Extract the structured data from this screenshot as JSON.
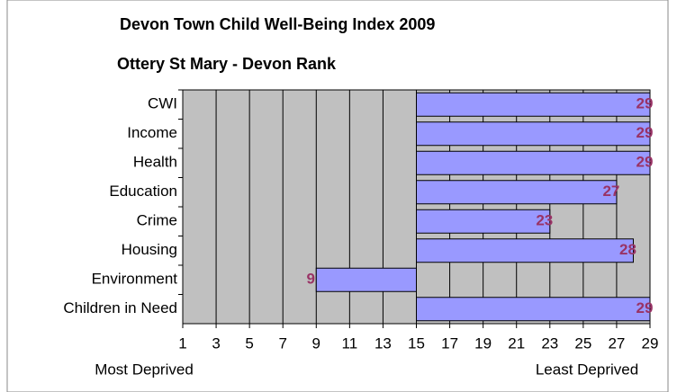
{
  "chart_data": {
    "type": "hbar",
    "title": "Devon Town Child Well-Being Index 2009",
    "subtitle": "Ottery St Mary - Devon Rank",
    "categories": [
      "CWI",
      "Income",
      "Health",
      "Education",
      "Crime",
      "Housing",
      "Environment",
      "Children in Need"
    ],
    "values": [
      29,
      29,
      29,
      27,
      23,
      28,
      9,
      29
    ],
    "bar_base": 15,
    "color": "#9999ff",
    "label_color": "#993366",
    "plot_background": "#c0c0c0",
    "xlim": [
      1,
      29
    ],
    "xticks": [
      1,
      3,
      5,
      7,
      9,
      11,
      13,
      15,
      17,
      19,
      21,
      23,
      25,
      27,
      29
    ],
    "grid": true,
    "x_axis_labels": [
      "Most Deprived",
      "Least Deprived"
    ]
  }
}
